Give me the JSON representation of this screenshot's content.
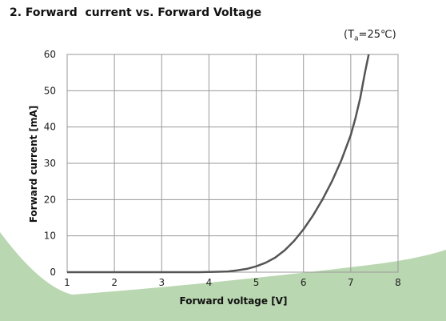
{
  "chart_data": {
    "type": "line",
    "title": "2. Forward  current vs. Forward Voltage",
    "condition": {
      "symbol": "T",
      "subscript": "a",
      "rest": "=25℃"
    },
    "xlabel": "Forward voltage [V]",
    "ylabel": "Forward current [mA]",
    "xlim": [
      1,
      8
    ],
    "ylim": [
      0,
      60
    ],
    "xticks": [
      1,
      2,
      3,
      4,
      5,
      6,
      7,
      8
    ],
    "yticks": [
      0,
      10,
      20,
      30,
      40,
      50,
      60
    ],
    "grid": true,
    "series": [
      {
        "color": "#555555",
        "points": [
          [
            1.0,
            0
          ],
          [
            2.0,
            0
          ],
          [
            3.0,
            0
          ],
          [
            3.8,
            0
          ],
          [
            4.0,
            0.05
          ],
          [
            4.2,
            0.1
          ],
          [
            4.4,
            0.2
          ],
          [
            4.6,
            0.5
          ],
          [
            4.8,
            0.9
          ],
          [
            5.0,
            1.6
          ],
          [
            5.2,
            2.6
          ],
          [
            5.4,
            4.0
          ],
          [
            5.6,
            6.0
          ],
          [
            5.8,
            8.6
          ],
          [
            6.0,
            11.8
          ],
          [
            6.2,
            15.6
          ],
          [
            6.4,
            20.0
          ],
          [
            6.6,
            25.0
          ],
          [
            6.8,
            30.8
          ],
          [
            7.0,
            37.8
          ],
          [
            7.1,
            42.5
          ],
          [
            7.2,
            48.0
          ],
          [
            7.3,
            55.0
          ],
          [
            7.38,
            60.0
          ]
        ]
      }
    ]
  }
}
